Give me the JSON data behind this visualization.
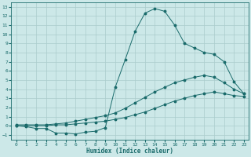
{
  "xlabel": "Humidex (Indice chaleur)",
  "background_color": "#cce8e8",
  "grid_color": "#aacccc",
  "line_color": "#1a6b6b",
  "xlim": [
    -0.5,
    23.5
  ],
  "ylim": [
    -1.5,
    13.5
  ],
  "xticks": [
    0,
    1,
    2,
    3,
    4,
    5,
    6,
    7,
    8,
    9,
    10,
    11,
    12,
    13,
    14,
    15,
    16,
    17,
    18,
    19,
    20,
    21,
    22,
    23
  ],
  "yticks": [
    -1,
    0,
    1,
    2,
    3,
    4,
    5,
    6,
    7,
    8,
    9,
    10,
    11,
    12,
    13
  ],
  "line1_x": [
    0,
    1,
    2,
    3,
    4,
    5,
    6,
    7,
    8,
    9,
    10,
    11,
    12,
    13,
    14,
    15,
    16,
    17,
    18,
    19,
    20,
    21,
    22,
    23
  ],
  "line1_y": [
    0.0,
    -0.1,
    -0.3,
    -0.3,
    -0.8,
    -0.8,
    -0.9,
    -0.7,
    -0.6,
    -0.2,
    4.2,
    7.2,
    10.3,
    12.3,
    12.8,
    12.5,
    11.0,
    9.0,
    8.5,
    8.0,
    7.8,
    7.0,
    4.8,
    3.5
  ],
  "line2_x": [
    0,
    1,
    2,
    3,
    4,
    5,
    6,
    7,
    8,
    9,
    10,
    11,
    12,
    13,
    14,
    15,
    16,
    17,
    18,
    19,
    20,
    21,
    22,
    23
  ],
  "line2_y": [
    0.1,
    0.1,
    0.1,
    0.1,
    0.2,
    0.3,
    0.5,
    0.7,
    0.9,
    1.1,
    1.4,
    1.9,
    2.5,
    3.1,
    3.7,
    4.2,
    4.7,
    5.0,
    5.3,
    5.5,
    5.3,
    4.7,
    4.0,
    3.5
  ],
  "line3_x": [
    0,
    1,
    2,
    3,
    4,
    5,
    6,
    7,
    8,
    9,
    10,
    11,
    12,
    13,
    14,
    15,
    16,
    17,
    18,
    19,
    20,
    21,
    22,
    23
  ],
  "line3_y": [
    0.0,
    0.0,
    0.0,
    0.0,
    0.1,
    0.1,
    0.2,
    0.3,
    0.4,
    0.5,
    0.7,
    0.9,
    1.2,
    1.5,
    1.9,
    2.3,
    2.7,
    3.0,
    3.3,
    3.5,
    3.7,
    3.5,
    3.3,
    3.2
  ]
}
